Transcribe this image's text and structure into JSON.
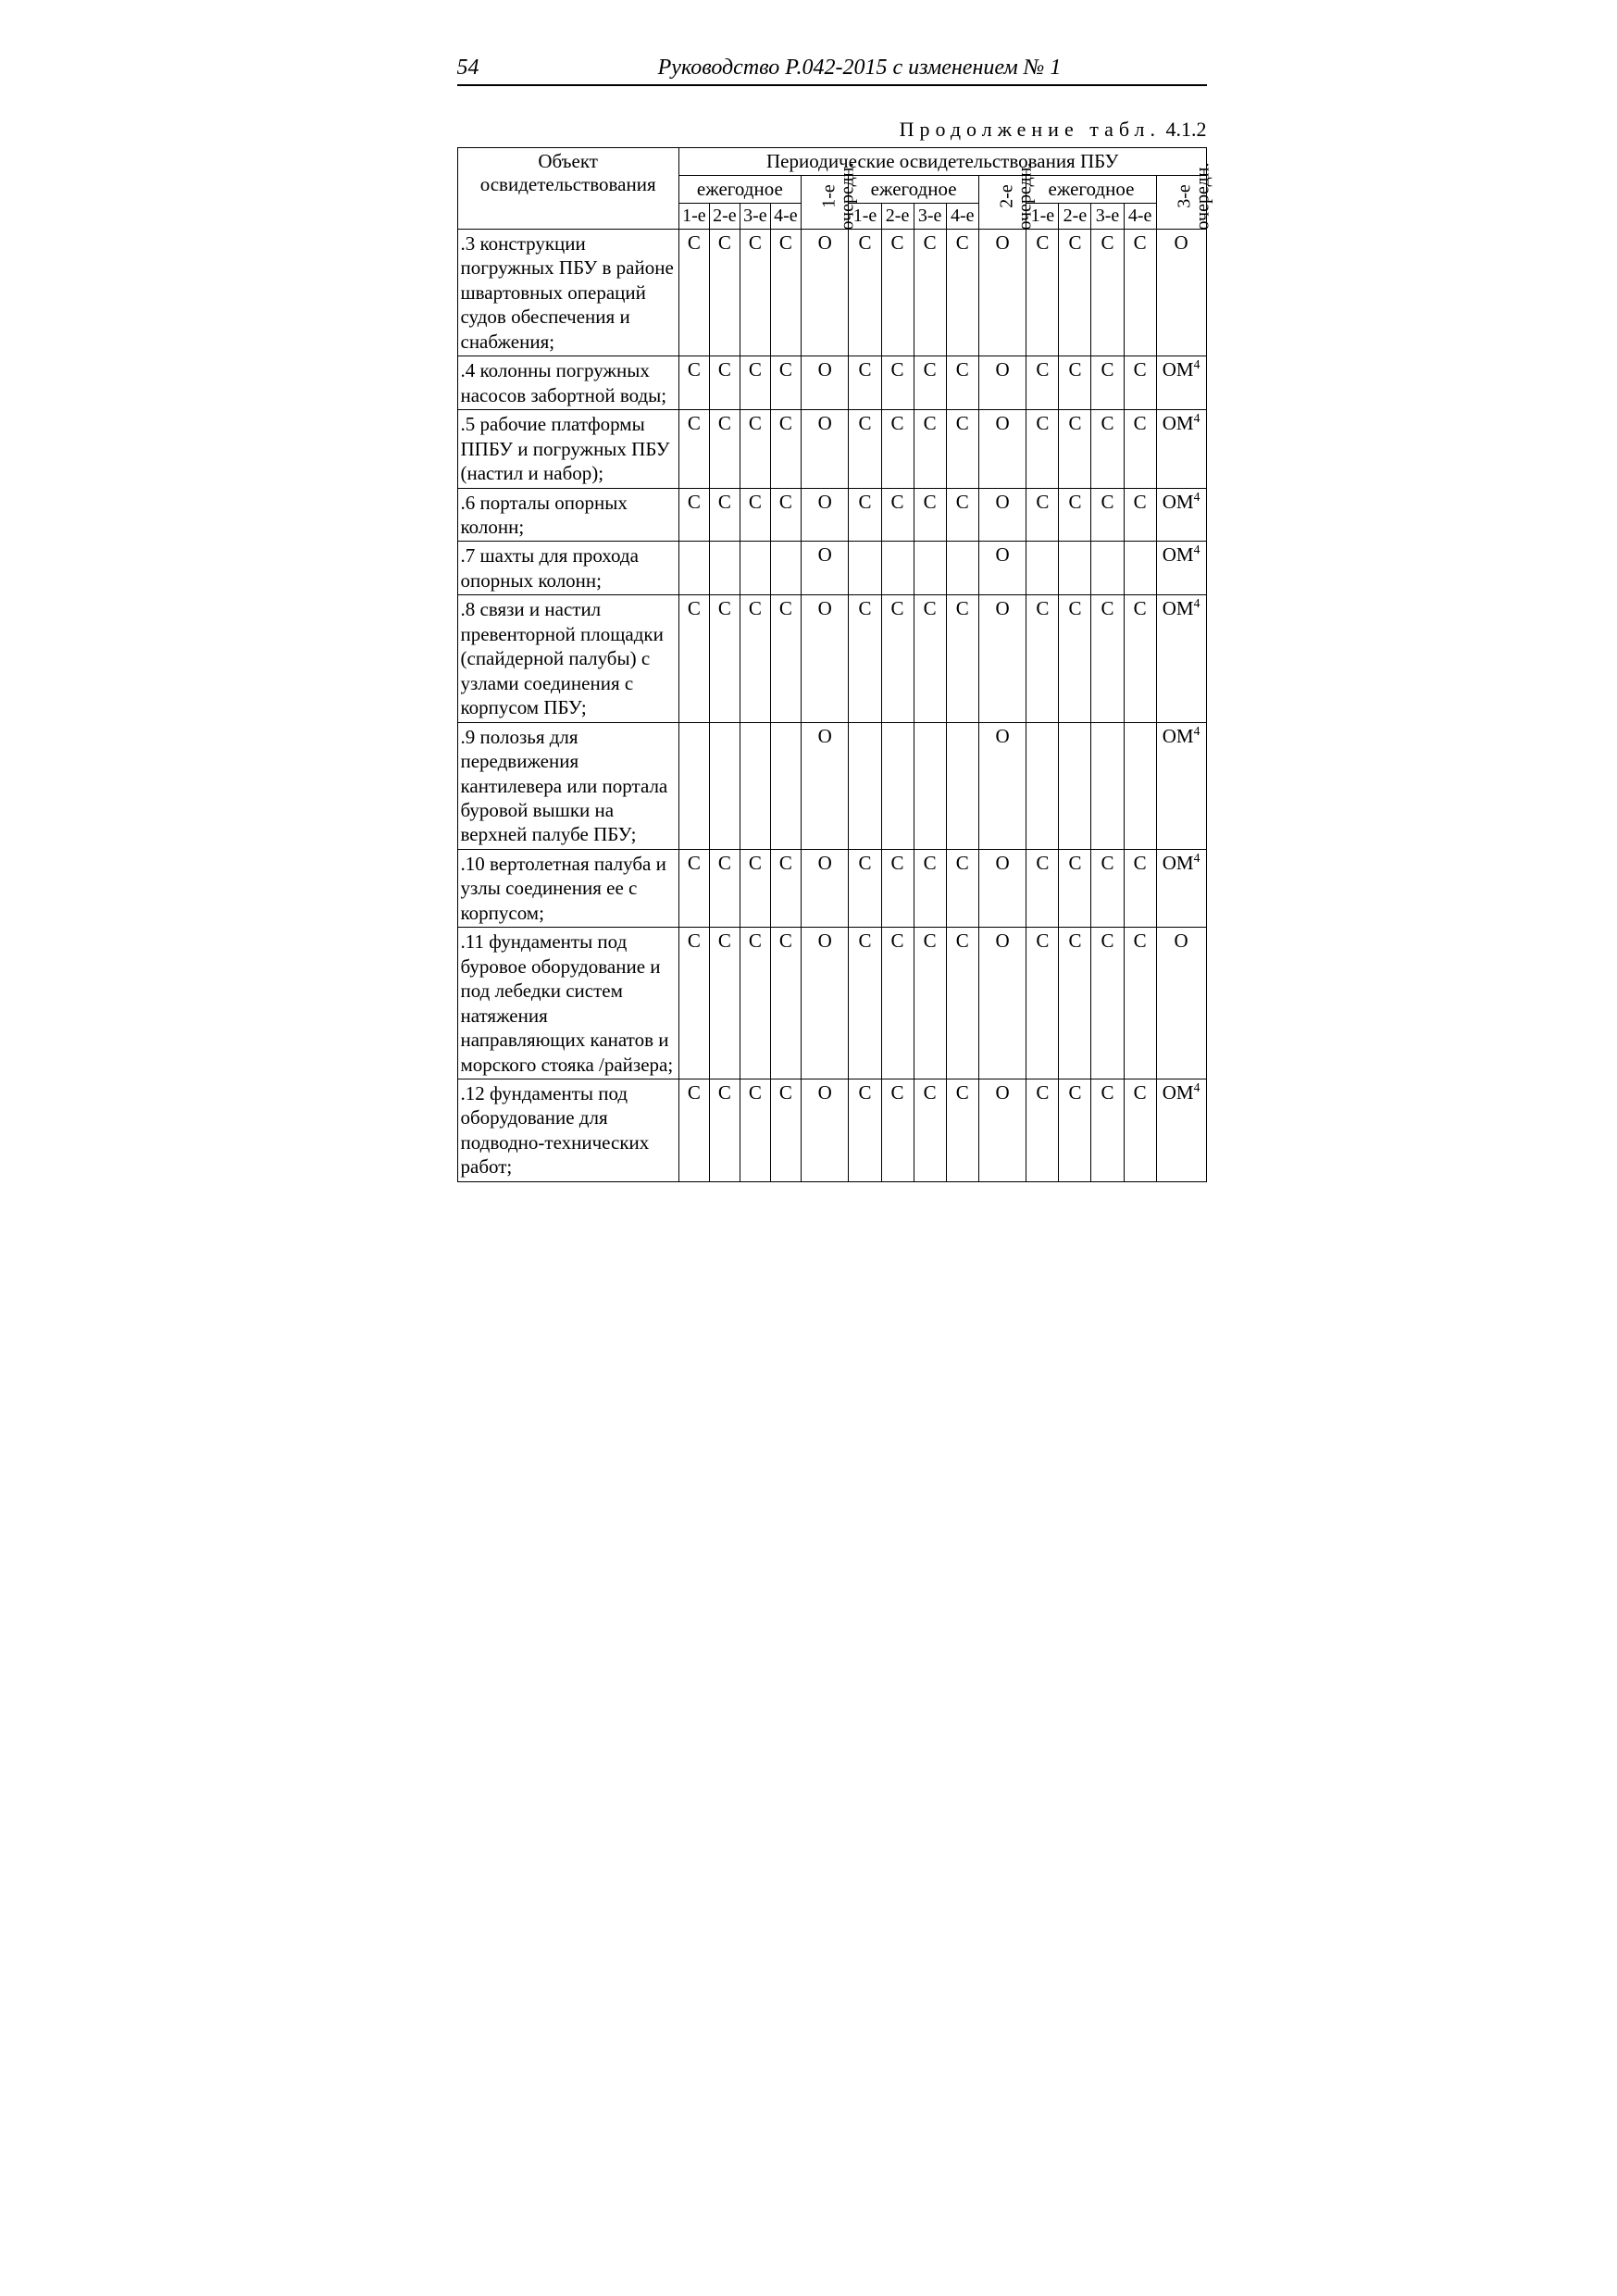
{
  "page_number": "54",
  "running_title": "Руководство Р.042-2015 с изменением № 1",
  "caption_spaced": "Продолжение табл.",
  "caption_num": " 4.1.2",
  "header": {
    "periodic": "Периодические освидетельствования ПБУ",
    "object": "Объект освидетельствования",
    "yearly": "ежегодное",
    "sub": [
      "1-е",
      "2-е",
      "3-е",
      "4-е"
    ],
    "och1_top": "1-е",
    "och2_top": "2-е",
    "och3_top": "3-е",
    "och_bot": "очередн."
  },
  "rows": [
    {
      "label": ".3 конструкции погружных ПБУ в районе швартовных операций судов обеспечения и снабжения;",
      "cells": [
        "С",
        "С",
        "С",
        "С",
        "О",
        "С",
        "С",
        "С",
        "С",
        "О",
        "С",
        "С",
        "С",
        "С",
        "О"
      ]
    },
    {
      "label": ".4 колонны погружных насосов забортной воды;",
      "cells": [
        "С",
        "С",
        "С",
        "С",
        "О",
        "С",
        "С",
        "С",
        "С",
        "О",
        "С",
        "С",
        "С",
        "С",
        "ОМ<sup>4</sup>"
      ]
    },
    {
      "label": ".5 рабочие платформы ППБУ и погружных ПБУ (настил и набор);",
      "cells": [
        "С",
        "С",
        "С",
        "С",
        "О",
        "С",
        "С",
        "С",
        "С",
        "О",
        "С",
        "С",
        "С",
        "С",
        "ОМ<sup>4</sup>"
      ]
    },
    {
      "label": ".6 порталы опорных колонн;",
      "cells": [
        "С",
        "С",
        "С",
        "С",
        "О",
        "С",
        "С",
        "С",
        "С",
        "О",
        "С",
        "С",
        "С",
        "С",
        "ОМ<sup>4</sup>"
      ]
    },
    {
      "label": ".7 шахты для прохода опорных колонн;",
      "cells": [
        "",
        "",
        "",
        "",
        "О",
        "",
        "",
        "",
        "",
        "О",
        "",
        "",
        "",
        "",
        "ОМ<sup>4</sup>"
      ]
    },
    {
      "label": ".8 связи и настил превенторной площадки (спайдерной палубы) с узлами соединения с корпусом ПБУ;",
      "cells": [
        "С",
        "С",
        "С",
        "С",
        "О",
        "С",
        "С",
        "С",
        "С",
        "О",
        "С",
        "С",
        "С",
        "С",
        "ОМ<sup>4</sup>"
      ]
    },
    {
      "label": ".9 полозья для передвижения кантилевера или портала буровой вышки на верхней палубе ПБУ;",
      "cells": [
        "",
        "",
        "",
        "",
        "О",
        "",
        "",
        "",
        "",
        "О",
        "",
        "",
        "",
        "",
        "ОМ<sup>4</sup>"
      ]
    },
    {
      "label": ".10 вертолетная палуба и узлы соединения ее с корпусом;",
      "cells": [
        "С",
        "С",
        "С",
        "С",
        "О",
        "С",
        "С",
        "С",
        "С",
        "О",
        "С",
        "С",
        "С",
        "С",
        "ОМ<sup>4</sup>"
      ]
    },
    {
      "label": ".11 фундаменты под буровое оборудование и под лебедки систем натяжения направляющих канатов и морского стояка /райзера;",
      "cells": [
        "С",
        "С",
        "С",
        "С",
        "О",
        "С",
        "С",
        "С",
        "С",
        "О",
        "С",
        "С",
        "С",
        "С",
        "О"
      ]
    },
    {
      "label": ".12 фундаменты под оборудование для подводно-технических работ;",
      "cells": [
        "С",
        "С",
        "С",
        "С",
        "О",
        "С",
        "С",
        "С",
        "С",
        "О",
        "С",
        "С",
        "С",
        "С",
        "ОМ<sup>4</sup>"
      ]
    }
  ]
}
